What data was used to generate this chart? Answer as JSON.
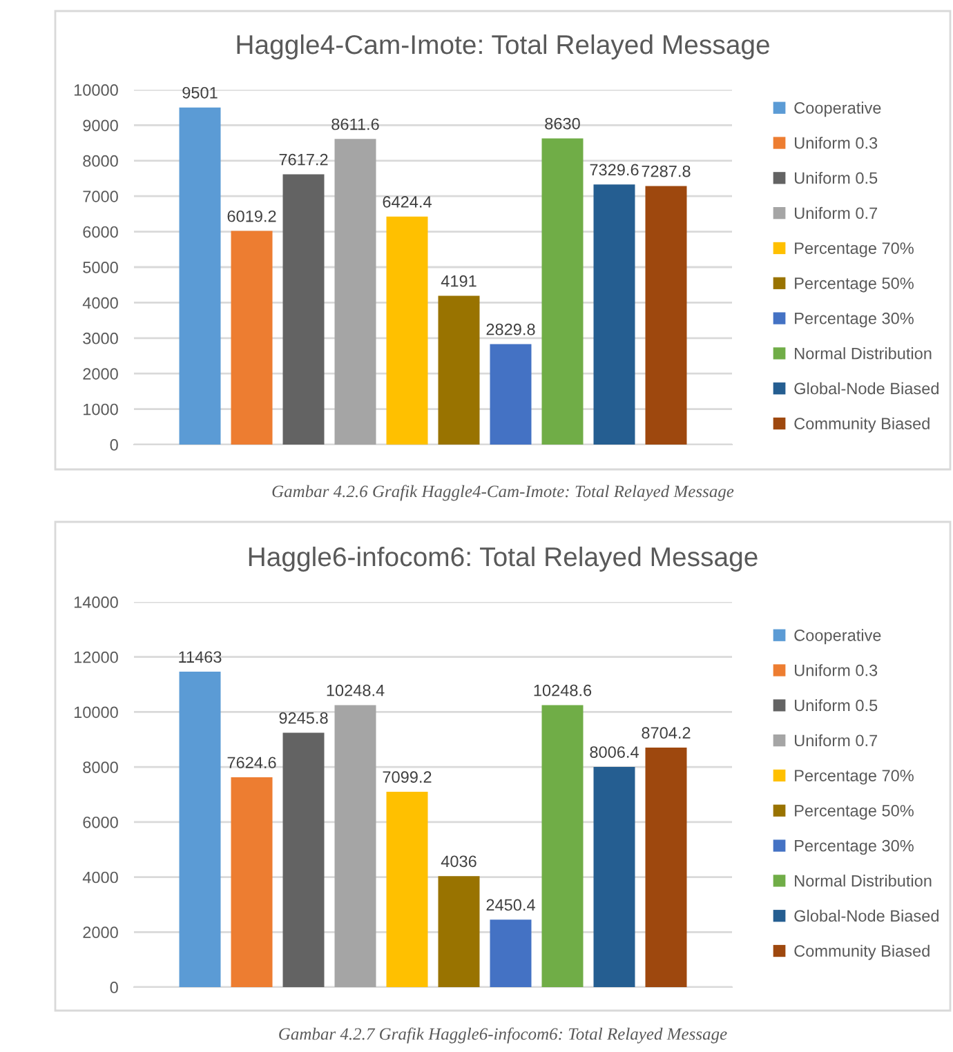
{
  "chart_data": [
    {
      "type": "bar",
      "title": "Haggle4-Cam-Imote: Total Relayed Message",
      "categories": [
        null
      ],
      "series": [
        {
          "name": "Cooperative",
          "color": "#5b9bd5",
          "values": [
            9501
          ]
        },
        {
          "name": "Uniform 0.3",
          "color": "#ed7d31",
          "values": [
            6019.2
          ]
        },
        {
          "name": "Uniform 0.5",
          "color": "#636363",
          "values": [
            7617.2
          ]
        },
        {
          "name": "Uniform 0.7",
          "color": "#a5a5a5",
          "values": [
            8611.6
          ]
        },
        {
          "name": "Percentage 70%",
          "color": "#ffc000",
          "values": [
            6424.4
          ]
        },
        {
          "name": "Percentage 50%",
          "color": "#997300",
          "values": [
            4191
          ]
        },
        {
          "name": "Percentage 30%",
          "color": "#4472c4",
          "values": [
            2829.8
          ]
        },
        {
          "name": "Normal Distribution",
          "color": "#70ad47",
          "values": [
            8630
          ]
        },
        {
          "name": "Global-Node Biased",
          "color": "#255e91",
          "values": [
            7329.6
          ]
        },
        {
          "name": "Community Biased",
          "color": "#9e480e",
          "values": [
            7287.8
          ]
        }
      ],
      "ylim": [
        0,
        10000
      ],
      "yticks": [
        0,
        1000,
        2000,
        3000,
        4000,
        5000,
        6000,
        7000,
        8000,
        9000,
        10000
      ],
      "grid": "y",
      "legend": "right",
      "data_labels": true,
      "tick_labels": "y",
      "annotations": [
        "Gambar 4.2.6 Grafik Haggle4-Cam-Imote: Total Relayed Message"
      ]
    },
    {
      "type": "bar",
      "title": "Haggle6-infocom6: Total Relayed Message",
      "categories": [
        null
      ],
      "series": [
        {
          "name": "Cooperative",
          "color": "#5b9bd5",
          "values": [
            11463
          ]
        },
        {
          "name": "Uniform 0.3",
          "color": "#ed7d31",
          "values": [
            7624.6
          ]
        },
        {
          "name": "Uniform 0.5",
          "color": "#636363",
          "values": [
            9245.8
          ]
        },
        {
          "name": "Uniform 0.7",
          "color": "#a5a5a5",
          "values": [
            10248.4
          ]
        },
        {
          "name": "Percentage 70%",
          "color": "#ffc000",
          "values": [
            7099.2
          ]
        },
        {
          "name": "Percentage 50%",
          "color": "#997300",
          "values": [
            4036
          ]
        },
        {
          "name": "Percentage 30%",
          "color": "#4472c4",
          "values": [
            2450.4
          ]
        },
        {
          "name": "Normal Distribution",
          "color": "#70ad47",
          "values": [
            10248.6
          ]
        },
        {
          "name": "Global-Node Biased",
          "color": "#255e91",
          "values": [
            8006.4
          ]
        },
        {
          "name": "Community Biased",
          "color": "#9e480e",
          "values": [
            8704.2
          ]
        }
      ],
      "ylim": [
        0,
        14000
      ],
      "yticks": [
        0,
        2000,
        4000,
        6000,
        8000,
        10000,
        12000,
        14000
      ],
      "grid": "y",
      "legend": "right",
      "data_labels": true,
      "tick_labels": "y",
      "annotations": [
        "Gambar 4.2.7 Grafik Haggle6-infocom6: Total Relayed Message"
      ]
    }
  ]
}
